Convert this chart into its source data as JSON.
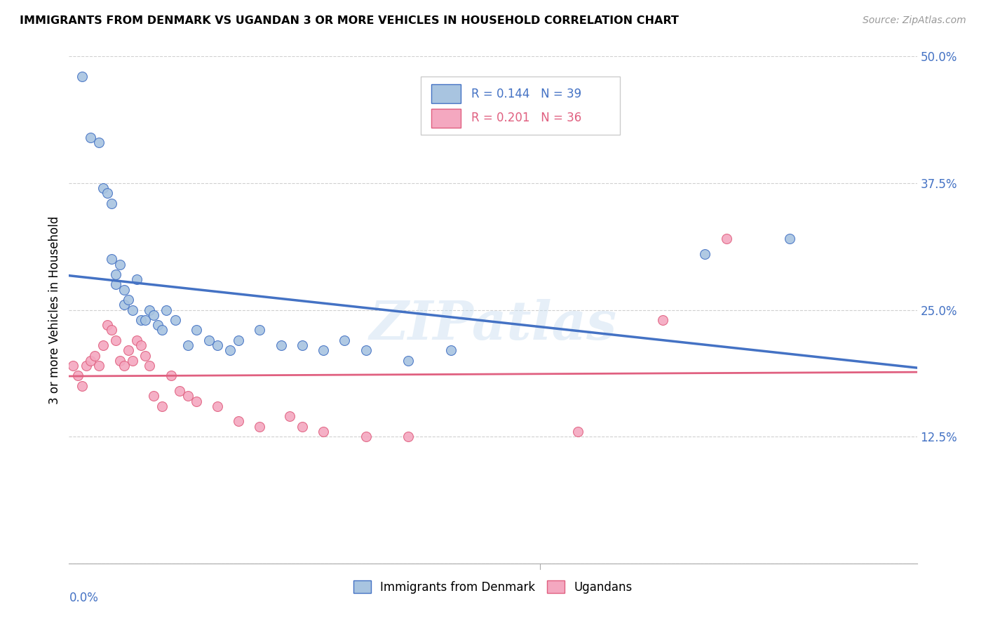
{
  "title": "IMMIGRANTS FROM DENMARK VS UGANDAN 3 OR MORE VEHICLES IN HOUSEHOLD CORRELATION CHART",
  "source": "Source: ZipAtlas.com",
  "ylabel": "3 or more Vehicles in Household",
  "xlim": [
    0.0,
    0.2
  ],
  "ylim": [
    0.0,
    0.5
  ],
  "yticks": [
    0.0,
    0.125,
    0.25,
    0.375,
    0.5
  ],
  "ytick_labels": [
    "",
    "12.5%",
    "25.0%",
    "37.5%",
    "50.0%"
  ],
  "legend_r1": "R = 0.144",
  "legend_n1": "N = 39",
  "legend_r2": "R = 0.201",
  "legend_n2": "N = 36",
  "color_blue": "#a8c4e0",
  "color_pink": "#f4a8c0",
  "line_color_blue": "#4472c4",
  "line_color_pink": "#e06080",
  "watermark": "ZIPatlas",
  "denmark_x": [
    0.003,
    0.005,
    0.007,
    0.008,
    0.009,
    0.01,
    0.01,
    0.011,
    0.011,
    0.012,
    0.013,
    0.013,
    0.014,
    0.015,
    0.016,
    0.017,
    0.018,
    0.019,
    0.02,
    0.021,
    0.022,
    0.023,
    0.025,
    0.028,
    0.03,
    0.033,
    0.035,
    0.038,
    0.04,
    0.045,
    0.05,
    0.055,
    0.06,
    0.065,
    0.07,
    0.08,
    0.09,
    0.15,
    0.17
  ],
  "denmark_y": [
    0.48,
    0.42,
    0.415,
    0.37,
    0.365,
    0.355,
    0.3,
    0.285,
    0.275,
    0.295,
    0.27,
    0.255,
    0.26,
    0.25,
    0.28,
    0.24,
    0.24,
    0.25,
    0.245,
    0.235,
    0.23,
    0.25,
    0.24,
    0.215,
    0.23,
    0.22,
    0.215,
    0.21,
    0.22,
    0.23,
    0.215,
    0.215,
    0.21,
    0.22,
    0.21,
    0.2,
    0.21,
    0.305,
    0.32
  ],
  "ugandan_x": [
    0.001,
    0.002,
    0.003,
    0.004,
    0.005,
    0.006,
    0.007,
    0.008,
    0.009,
    0.01,
    0.011,
    0.012,
    0.013,
    0.014,
    0.015,
    0.016,
    0.017,
    0.018,
    0.019,
    0.02,
    0.022,
    0.024,
    0.026,
    0.028,
    0.03,
    0.035,
    0.04,
    0.045,
    0.052,
    0.055,
    0.06,
    0.07,
    0.08,
    0.12,
    0.14,
    0.155
  ],
  "ugandan_y": [
    0.195,
    0.185,
    0.175,
    0.195,
    0.2,
    0.205,
    0.195,
    0.215,
    0.235,
    0.23,
    0.22,
    0.2,
    0.195,
    0.21,
    0.2,
    0.22,
    0.215,
    0.205,
    0.195,
    0.165,
    0.155,
    0.185,
    0.17,
    0.165,
    0.16,
    0.155,
    0.14,
    0.135,
    0.145,
    0.135,
    0.13,
    0.125,
    0.125,
    0.13,
    0.24,
    0.32
  ]
}
